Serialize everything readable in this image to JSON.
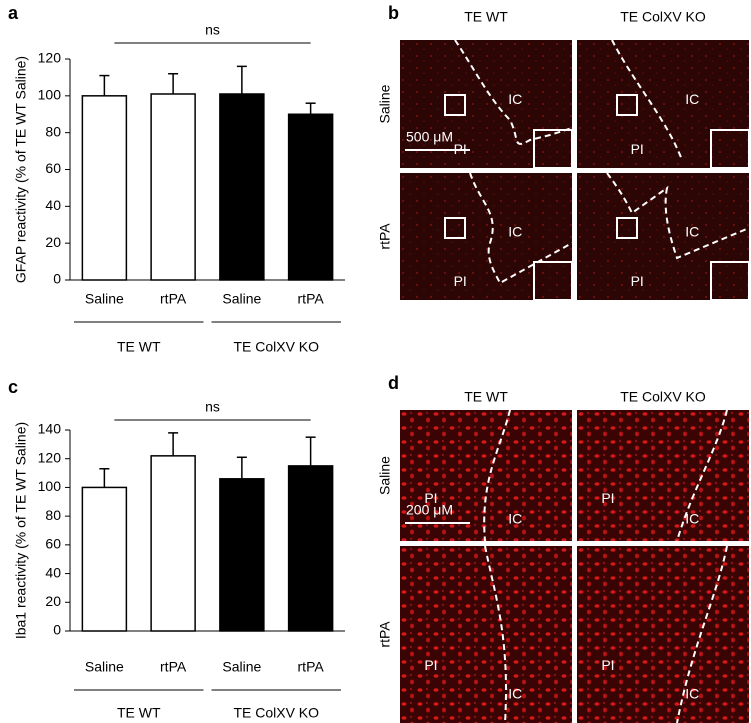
{
  "chart_data": [
    {
      "type": "bar",
      "panel": "a",
      "ylabel": "GFAP reactivity (% of TE WT Saline)",
      "categories": [
        "Saline",
        "rtPA",
        "Saline",
        "rtPA"
      ],
      "values": [
        100,
        101,
        101,
        90
      ],
      "errors": [
        11,
        11,
        15,
        6
      ],
      "colors": [
        "#ffffff",
        "#ffffff",
        "#000000",
        "#000000"
      ],
      "groups": [
        "TE WT",
        "TE ColXV KO"
      ],
      "significance": "ns",
      "ylim": [
        0,
        120
      ],
      "yticks": [
        0,
        20,
        40,
        60,
        80,
        100,
        120
      ]
    },
    {
      "type": "bar",
      "panel": "c",
      "ylabel": "Iba1 reactivity (% of TE WT Saline)",
      "categories": [
        "Saline",
        "rtPA",
        "Saline",
        "rtPA"
      ],
      "values": [
        100,
        122,
        106,
        115
      ],
      "errors": [
        13,
        16,
        15,
        20
      ],
      "colors": [
        "#ffffff",
        "#ffffff",
        "#000000",
        "#000000"
      ],
      "groups": [
        "TE WT",
        "TE ColXV KO"
      ],
      "significance": "ns",
      "ylim": [
        0,
        140
      ],
      "yticks": [
        0,
        20,
        40,
        60,
        80,
        100,
        120,
        140
      ]
    }
  ],
  "image_panels": [
    {
      "panel": "b",
      "columns": [
        "TE WT",
        "TE ColXV KO"
      ],
      "rows": [
        "Saline",
        "rtPA"
      ],
      "regions": [
        "IC",
        "PI"
      ],
      "scale_bar": "500 μM"
    },
    {
      "panel": "d",
      "columns": [
        "TE WT",
        "TE ColXV KO"
      ],
      "rows": [
        "Saline",
        "rtPA"
      ],
      "regions": [
        "IC",
        "PI"
      ],
      "scale_bar": "200 μM"
    }
  ]
}
